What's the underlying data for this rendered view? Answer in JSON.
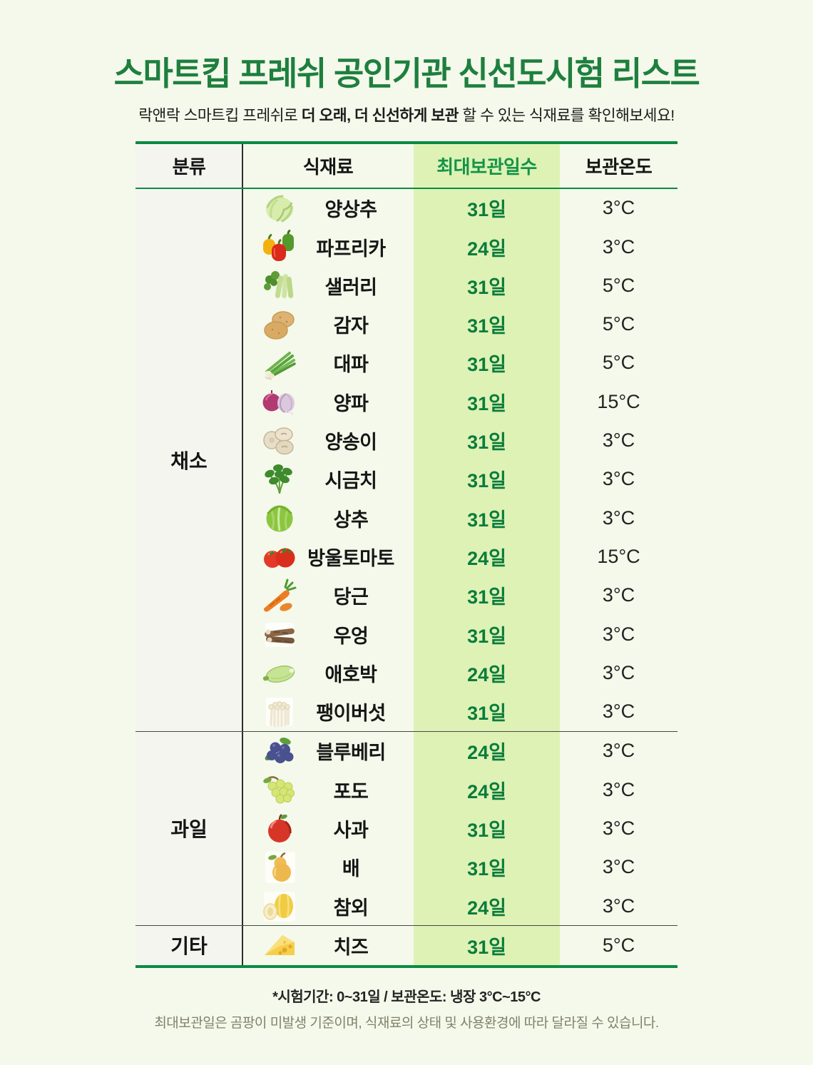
{
  "colors": {
    "page_bg": "#f4f9eb",
    "title_green": "#1e7f3e",
    "border_green": "#0a8a43",
    "days_column_bg": "#def2b6",
    "category_column_bg": "#f5f5f0",
    "days_text_green": "#0b7c3b",
    "header_days_green": "#149447",
    "note_gray": "#82826a"
  },
  "header": {
    "title": "스마트킵 프레쉬 공인기관 신선도시험 리스트",
    "subtitle_prefix": "락앤락 스마트킵 프레쉬로 ",
    "subtitle_bold": "더 오래, 더 신선하게 보관",
    "subtitle_suffix": " 할 수 있는 식재료를 확인해보세요!"
  },
  "table": {
    "columns": [
      "분류",
      "식재료",
      "최대보관일수",
      "보관온도"
    ],
    "sections": [
      {
        "key": "vegetables",
        "category": "채소",
        "rows": [
          {
            "icon": "lettuce-icon",
            "name": "양상추",
            "days": "31일",
            "temp": "3°C"
          },
          {
            "icon": "paprika-icon",
            "name": "파프리카",
            "days": "24일",
            "temp": "3°C"
          },
          {
            "icon": "celery-icon",
            "name": "샐러리",
            "days": "31일",
            "temp": "5°C"
          },
          {
            "icon": "potato-icon",
            "name": "감자",
            "days": "31일",
            "temp": "5°C"
          },
          {
            "icon": "scallion-icon",
            "name": "대파",
            "days": "31일",
            "temp": "5°C"
          },
          {
            "icon": "onion-icon",
            "name": "양파",
            "days": "31일",
            "temp": "15°C"
          },
          {
            "icon": "mushroom-icon",
            "name": "양송이",
            "days": "31일",
            "temp": "3°C"
          },
          {
            "icon": "spinach-icon",
            "name": "시금치",
            "days": "31일",
            "temp": "3°C"
          },
          {
            "icon": "green-lettuce-icon",
            "name": "상추",
            "days": "31일",
            "temp": "3°C"
          },
          {
            "icon": "cherry-tomato-icon",
            "name": "방울토마토",
            "days": "24일",
            "temp": "15°C"
          },
          {
            "icon": "carrot-icon",
            "name": "당근",
            "days": "31일",
            "temp": "3°C"
          },
          {
            "icon": "burdock-icon",
            "name": "우엉",
            "days": "31일",
            "temp": "3°C"
          },
          {
            "icon": "zucchini-icon",
            "name": "애호박",
            "days": "24일",
            "temp": "3°C"
          },
          {
            "icon": "enoki-icon",
            "name": "팽이버섯",
            "days": "31일",
            "temp": "3°C"
          }
        ]
      },
      {
        "key": "fruits",
        "category": "과일",
        "rows": [
          {
            "icon": "blueberry-icon",
            "name": "블루베리",
            "days": "24일",
            "temp": "3°C"
          },
          {
            "icon": "green-grape-icon",
            "name": "포도",
            "days": "24일",
            "temp": "3°C"
          },
          {
            "icon": "apple-icon",
            "name": "사과",
            "days": "31일",
            "temp": "3°C"
          },
          {
            "icon": "pear-icon",
            "name": "배",
            "days": "31일",
            "temp": "3°C"
          },
          {
            "icon": "korean-melon-icon",
            "name": "참외",
            "days": "24일",
            "temp": "3°C"
          }
        ]
      },
      {
        "key": "others",
        "category": "기타",
        "rows": [
          {
            "icon": "cheese-icon",
            "name": "치즈",
            "days": "31일",
            "temp": "5°C"
          }
        ]
      }
    ]
  },
  "footnotes": {
    "line1": "*시험기간: 0~31일 / 보관온도: 냉장 3°C~15°C",
    "line2": "최대보관일은 곰팡이 미발생 기준이며, 식재료의 상태 및 사용환경에 따라 달라질 수 있습니다."
  }
}
